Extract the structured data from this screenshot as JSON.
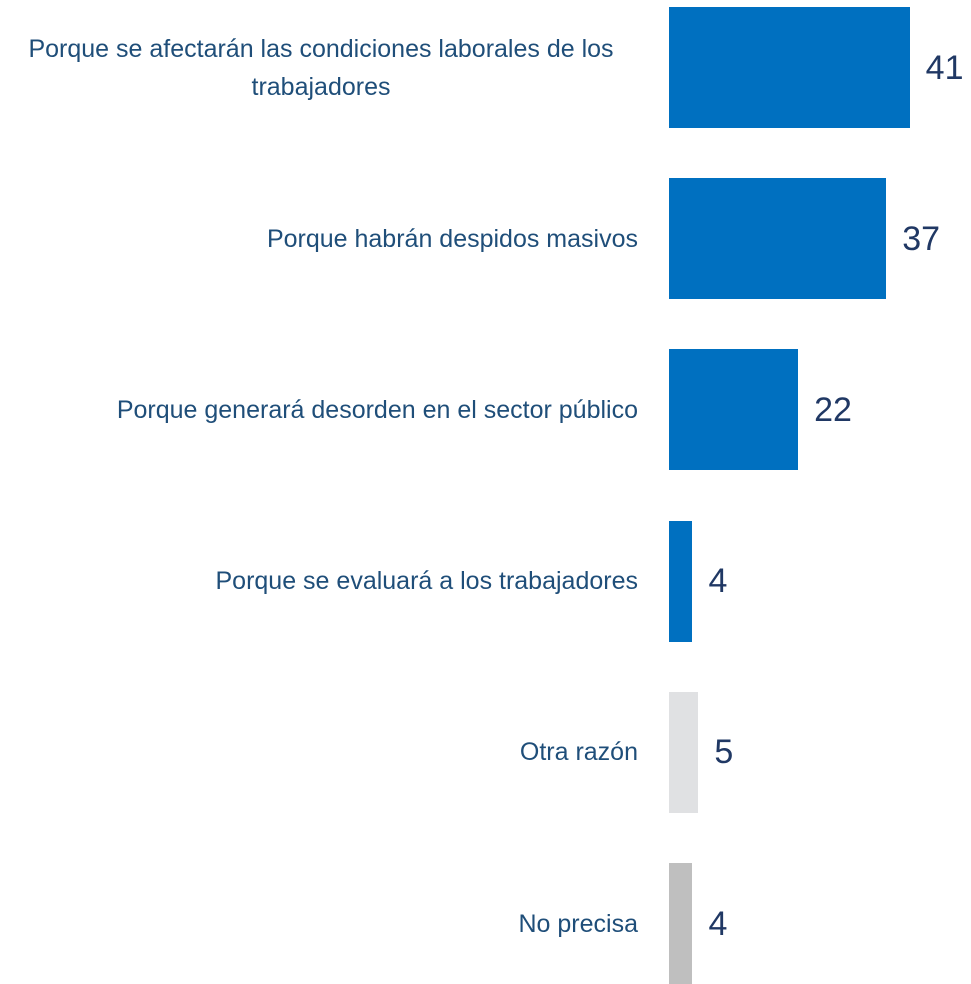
{
  "chart_data": {
    "type": "bar",
    "orientation": "horizontal",
    "categories": [
      "Porque se afectarán las condiciones laborales de los trabajadores",
      "Porque habrán despidos masivos",
      "Porque generará desorden en el sector público",
      "Porque se evaluará a los trabajadores",
      "Otra razón",
      "No precisa"
    ],
    "values": [
      41,
      37,
      22,
      4,
      5,
      4
    ],
    "colors": [
      "#0070c0",
      "#0070c0",
      "#0070c0",
      "#0070c0",
      "#e0e1e3",
      "#bfbfbf"
    ]
  }
}
